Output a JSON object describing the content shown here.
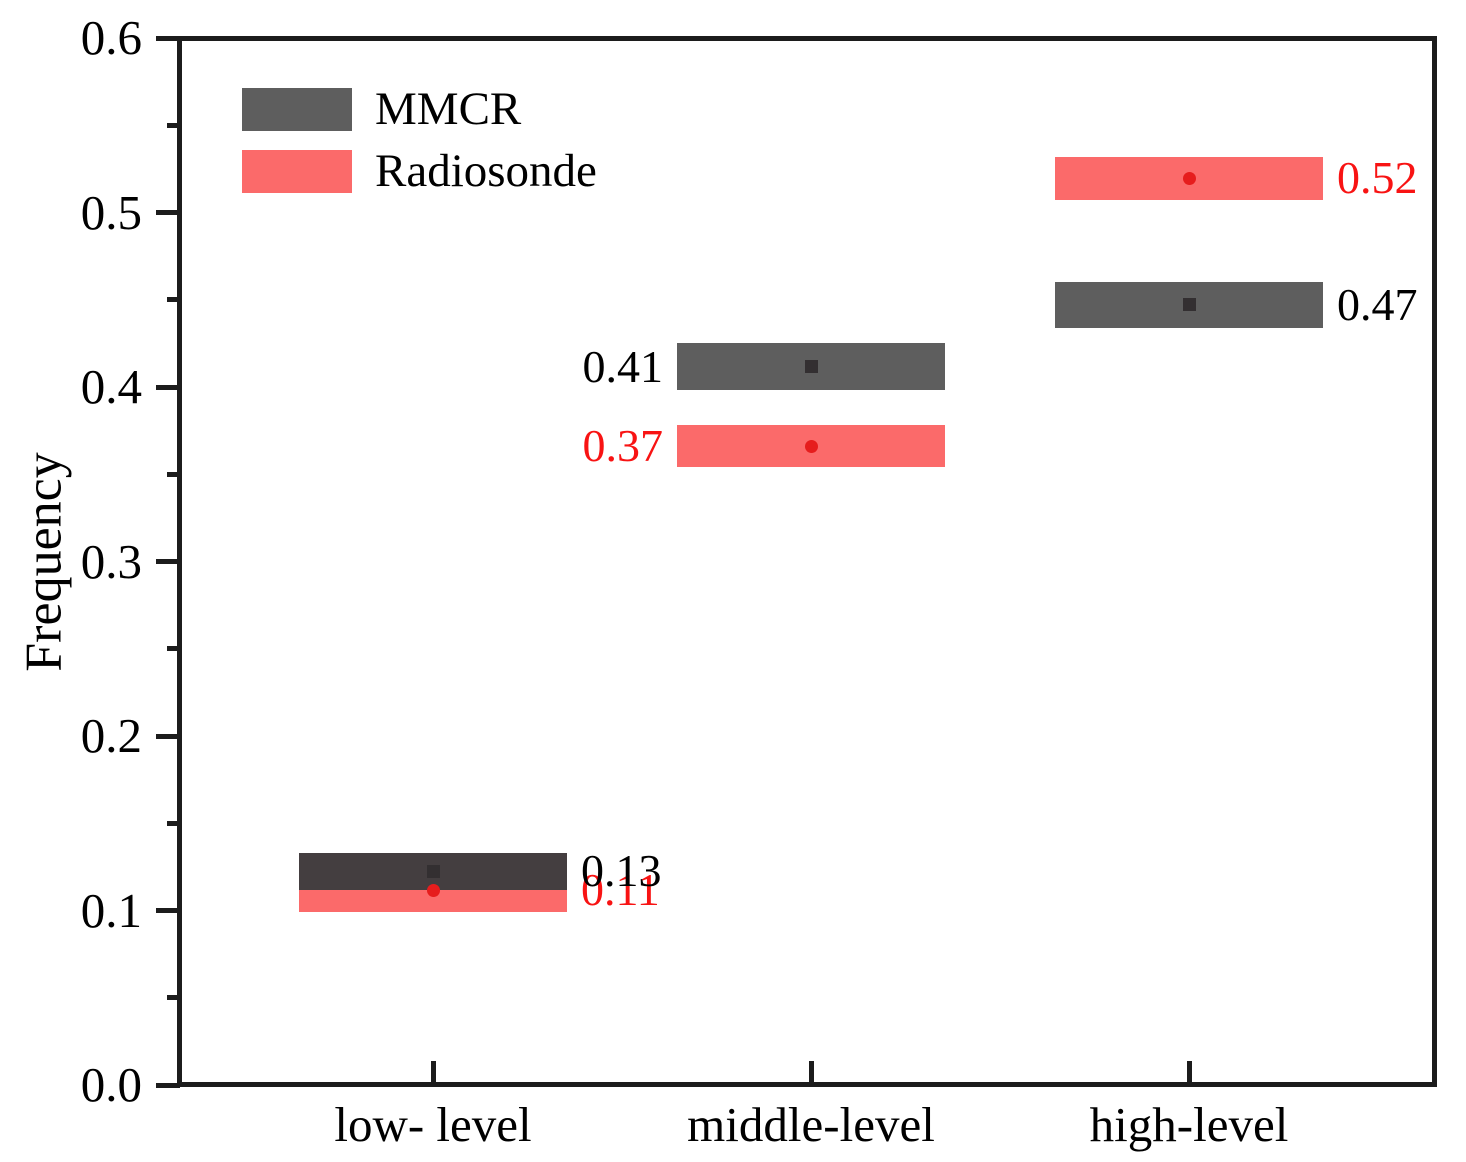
{
  "chart_data": {
    "type": "bar",
    "subtype": "floating-range-bars",
    "title": "",
    "xlabel": "",
    "ylabel": "Frequency",
    "ylim": [
      0.0,
      0.6
    ],
    "yticks": [
      0.0,
      0.1,
      0.2,
      0.3,
      0.4,
      0.5,
      0.6
    ],
    "ytick_labels": [
      "0.0",
      "0.1",
      "0.2",
      "0.3",
      "0.4",
      "0.5",
      "0.6"
    ],
    "yminor_ticks": [
      0.05,
      0.15,
      0.25,
      0.35,
      0.45,
      0.55
    ],
    "grid": false,
    "legend_position": "top-left",
    "categories": [
      "low- level",
      "middle-level",
      "high-level"
    ],
    "label_sides": [
      "right",
      "left",
      "right"
    ],
    "series": [
      {
        "name": "MMCR",
        "color": "#5e5e5e",
        "bar_colors": [
          "#443e40",
          "#5e5e5e",
          "#5e5e5e"
        ],
        "marker": "square",
        "marker_color": "#332f31",
        "values": [
          0.13,
          0.41,
          0.47
        ],
        "value_labels": [
          "0.13",
          "0.41",
          "0.47"
        ],
        "ranges": [
          [
            0.112,
            0.133
          ],
          [
            0.398,
            0.425
          ],
          [
            0.434,
            0.46
          ]
        ],
        "label_color": "#000000"
      },
      {
        "name": "Radiosonde",
        "color": "#fb6a6a",
        "bar_colors": [
          "#fb6a6a",
          "#fb6a6a",
          "#fb6a6a"
        ],
        "marker": "circle",
        "marker_color": "#e61d1d",
        "values": [
          0.11,
          0.37,
          0.52
        ],
        "value_labels": [
          "0.11",
          "0.37",
          "0.52"
        ],
        "ranges": [
          [
            0.099,
            0.124
          ],
          [
            0.354,
            0.378
          ],
          [
            0.507,
            0.532
          ]
        ],
        "label_color": "#f81313"
      }
    ]
  }
}
